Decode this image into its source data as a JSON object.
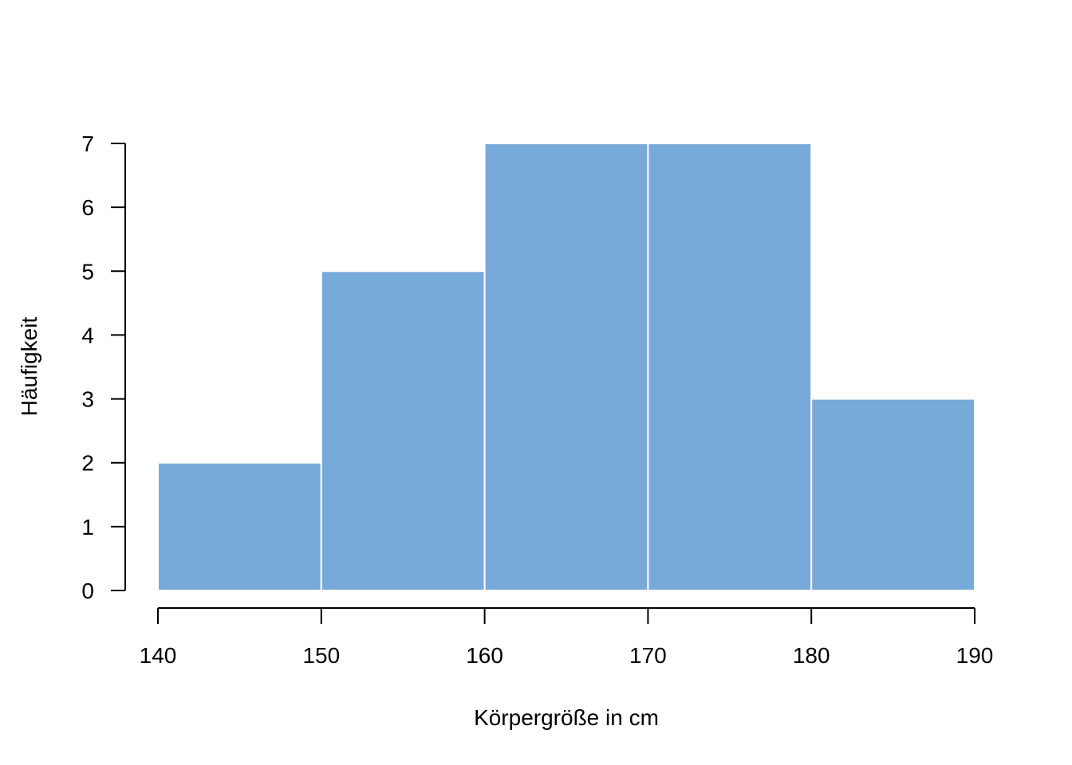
{
  "chart_data": {
    "type": "bar",
    "title": "",
    "xlabel": "Körpergröße in cm",
    "ylabel": "Häufigkeit",
    "bins": [
      {
        "from": 140,
        "to": 150,
        "count": 2
      },
      {
        "from": 150,
        "to": 160,
        "count": 5
      },
      {
        "from": 160,
        "to": 170,
        "count": 7
      },
      {
        "from": 170,
        "to": 180,
        "count": 7
      },
      {
        "from": 180,
        "to": 190,
        "count": 3
      }
    ],
    "x_ticks": [
      "140",
      "150",
      "160",
      "170",
      "180",
      "190"
    ],
    "y_ticks": [
      "0",
      "1",
      "2",
      "3",
      "4",
      "5",
      "6",
      "7"
    ],
    "xlim": [
      140,
      190
    ],
    "ylim": [
      0,
      7
    ],
    "grid": false,
    "legend": "none",
    "bar_color": "#77aad9",
    "bar_edge_color": "#ffffff"
  }
}
